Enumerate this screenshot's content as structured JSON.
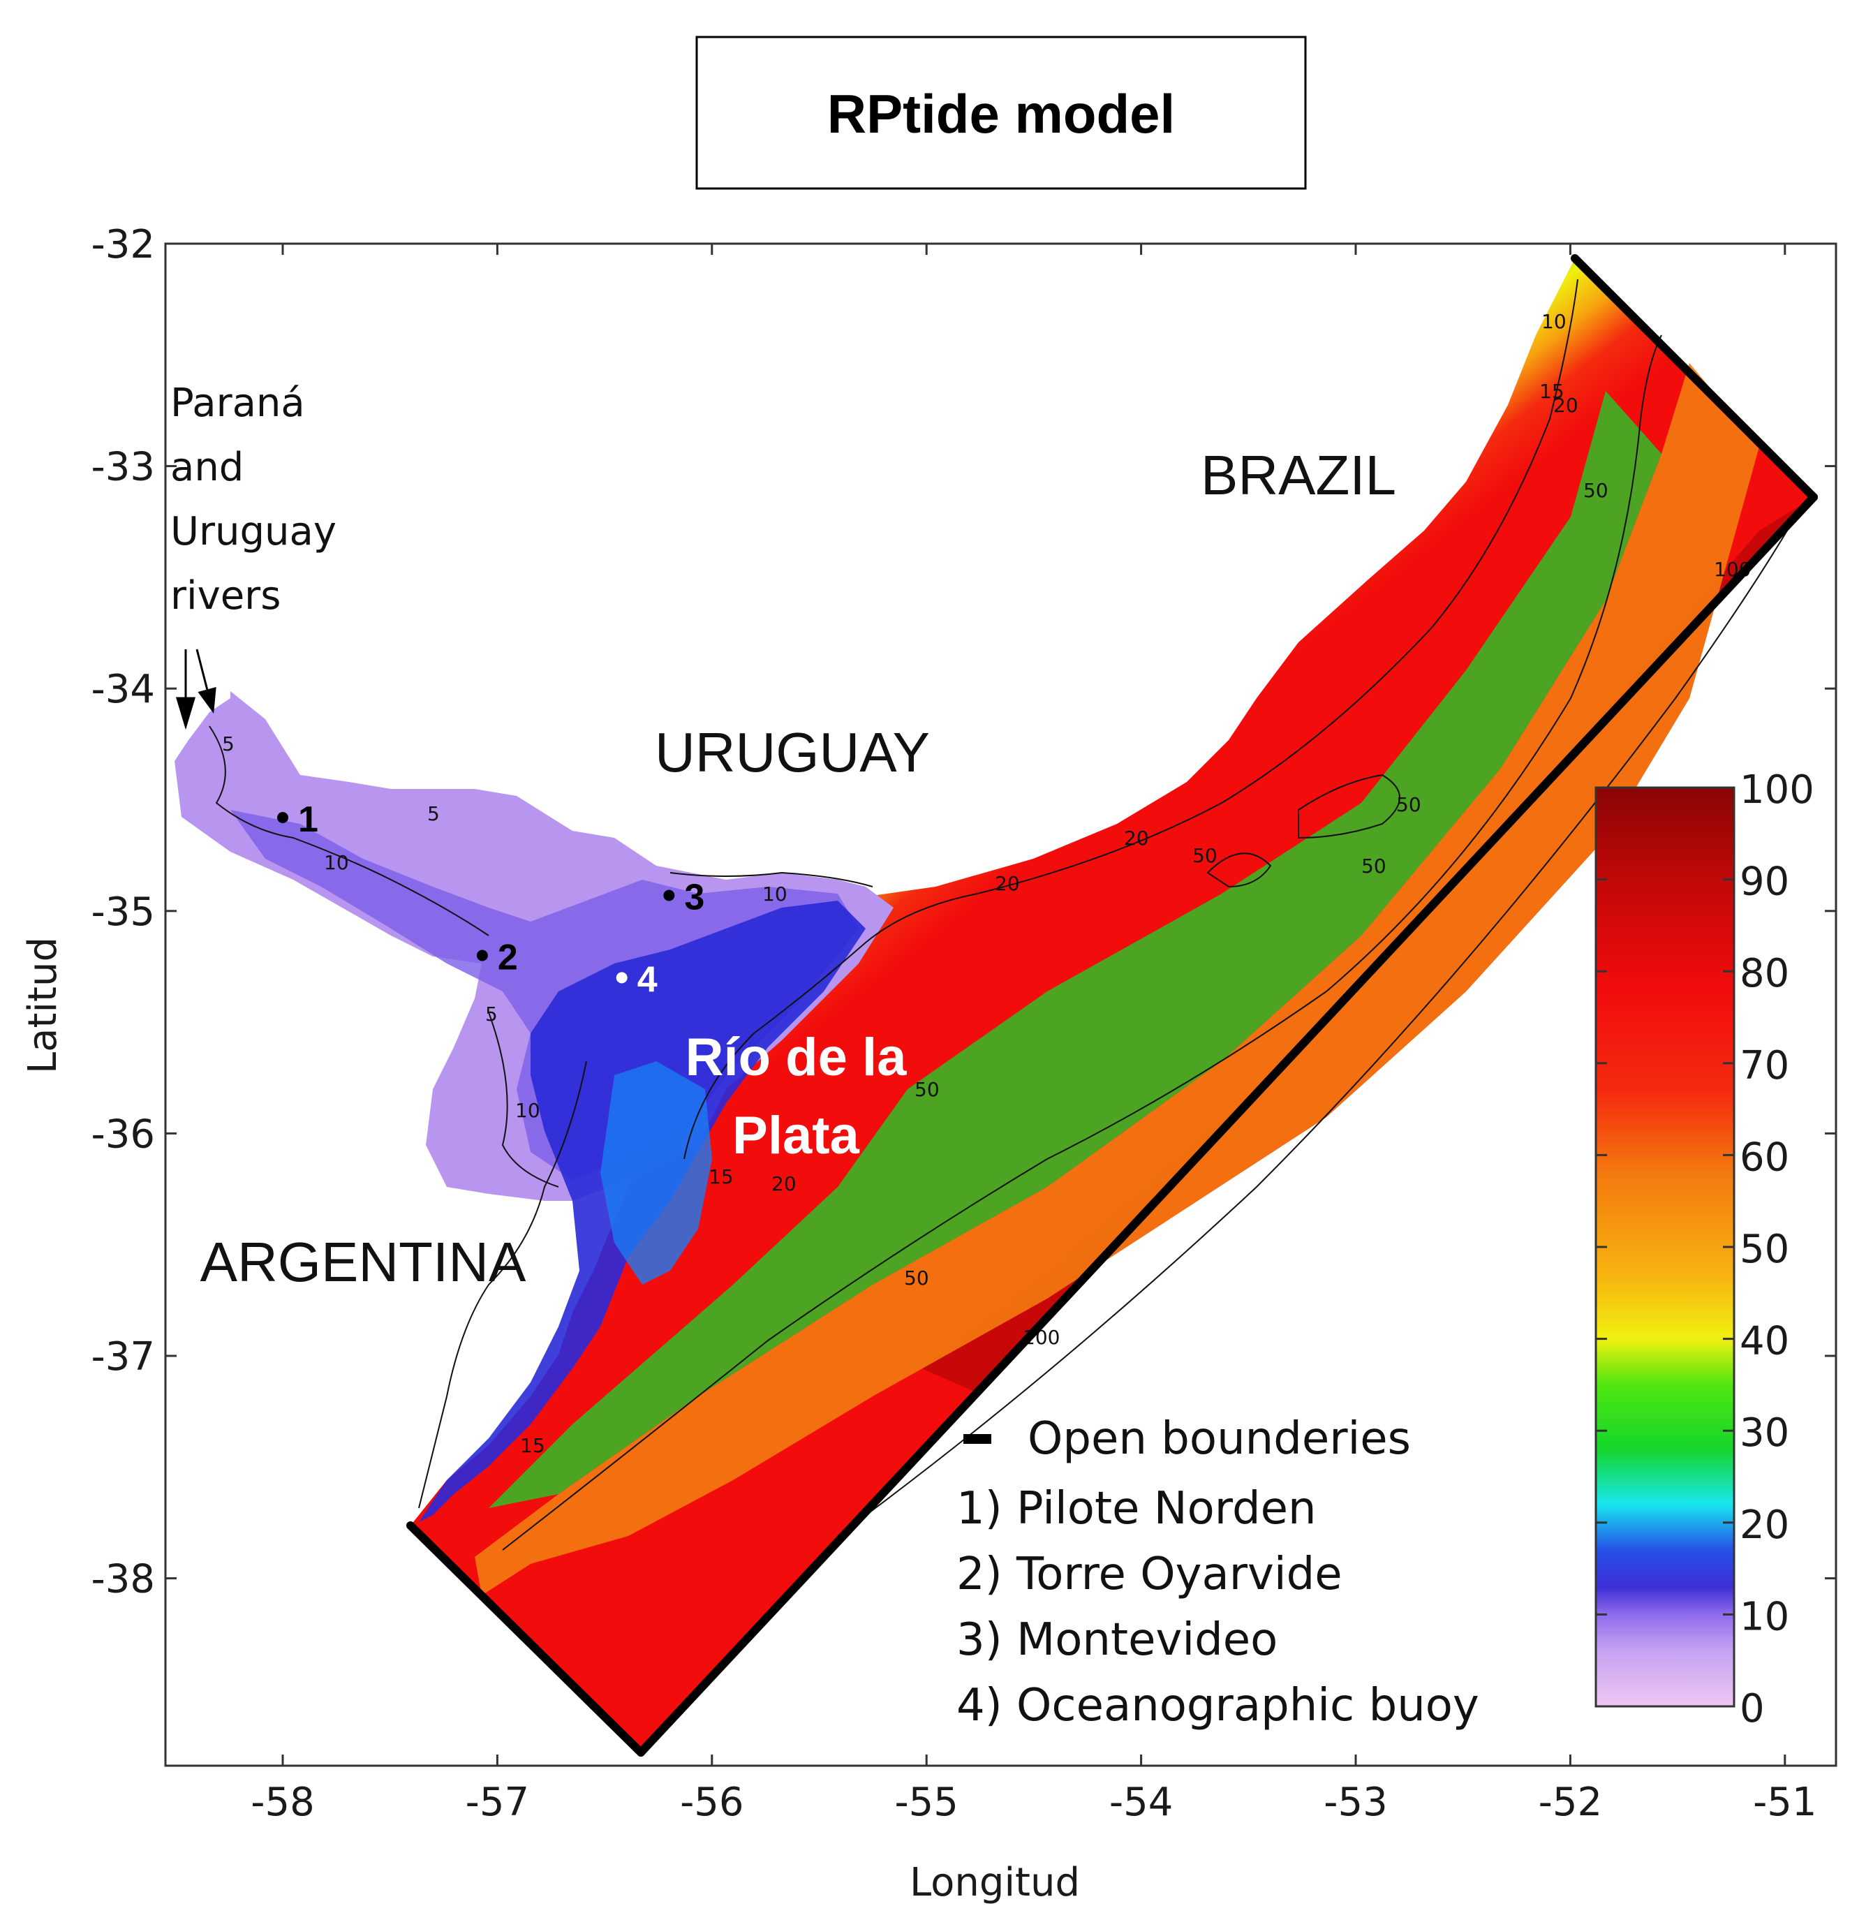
{
  "title": "RPtide model",
  "axes": {
    "xlabel": "Longitud",
    "ylabel": "Latitud",
    "xlim": [
      -58.55,
      -50.8
    ],
    "ylim": [
      -38.85,
      -32
    ],
    "xticks": [
      -58,
      -57,
      -56,
      -55,
      -54,
      -53,
      -52,
      -51
    ],
    "yticks": [
      -32,
      -33,
      -34,
      -35,
      -36,
      -37,
      -38
    ]
  },
  "colorbar": {
    "ticks": [
      0,
      10,
      20,
      30,
      40,
      50,
      60,
      70,
      80,
      90,
      100
    ],
    "range": [
      0,
      100
    ],
    "colors": [
      "#eec6f3",
      "#b48ef0",
      "#7b5ee8",
      "#2a2ad8",
      "#1b7cf2",
      "#18e6f0",
      "#15d62a",
      "#4fe610",
      "#f0f010",
      "#f7b20f",
      "#f47a0f",
      "#f42a0f",
      "#f20c0c",
      "#c10808",
      "#8a0505"
    ]
  },
  "labels": {
    "brazil": "BRAZIL",
    "uruguay": "URUGUAY",
    "argentina": "ARGENTINA",
    "rio_line1": "Río de la",
    "rio_line2": "Plata",
    "rivers": [
      "Paraná",
      "and",
      "Uruguay",
      "rivers"
    ]
  },
  "contour_labels": [
    "5",
    "5",
    "5",
    "10",
    "10",
    "10",
    "10",
    "15",
    "15",
    "15",
    "20",
    "20",
    "20",
    "20",
    "50",
    "50",
    "50",
    "50",
    "50",
    "100",
    "100",
    "50"
  ],
  "stations": [
    {
      "num": "1",
      "lon": -58.0,
      "lat": -34.58,
      "color": "#000000"
    },
    {
      "num": "2",
      "lon": -57.07,
      "lat": -35.2,
      "color": "#000000"
    },
    {
      "num": "3",
      "lon": -56.2,
      "lat": -34.93,
      "color": "#000000"
    },
    {
      "num": "4",
      "lon": -56.42,
      "lat": -35.3,
      "color": "#ffffff"
    }
  ],
  "legend": {
    "open_boundaries": "Open bounderies",
    "items": [
      "1)  Pilote Norden",
      "2)  Torre Oyarvide",
      "3) Montevideo",
      "4) Oceanographic buoy"
    ]
  }
}
